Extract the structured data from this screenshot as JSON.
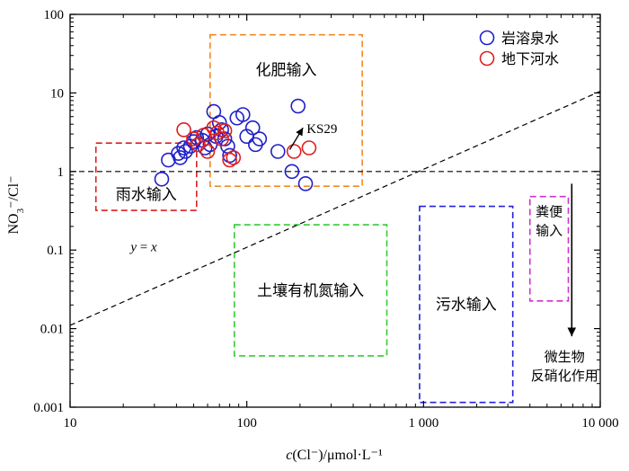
{
  "chart_data": {
    "type": "scatter",
    "xlabel": {
      "prefix": "c",
      "rest": "(Cl⁻)/μmol·L⁻¹"
    },
    "ylabel": {
      "main": "NO",
      "sub": "3",
      "rest": "⁻/Cl⁻"
    },
    "x_scale": "log",
    "y_scale": "log",
    "xlim": [
      10,
      10000
    ],
    "ylim": [
      0.001,
      100
    ],
    "x_ticks": [
      10,
      100,
      1000,
      10000
    ],
    "x_tick_labels": [
      "10",
      "100",
      "1 000",
      "10 000"
    ],
    "y_ticks": [
      0.001,
      0.01,
      0.1,
      1,
      10,
      100
    ],
    "y_tick_labels": [
      "0.001",
      "0.01",
      "0.1",
      "1",
      "10",
      "100"
    ],
    "grid": false,
    "legend_position": "top-right",
    "series": [
      {
        "name": "岩溶泉水",
        "color": "#1f1fcc",
        "marker": "open-circle",
        "points": [
          [
            33,
            0.8
          ],
          [
            36,
            1.4
          ],
          [
            41,
            1.7
          ],
          [
            42,
            1.5
          ],
          [
            44,
            2.0
          ],
          [
            45,
            1.8
          ],
          [
            48,
            2.1
          ],
          [
            50,
            2.4
          ],
          [
            52,
            2.7
          ],
          [
            56,
            2.5
          ],
          [
            58,
            2.0
          ],
          [
            60,
            3.0
          ],
          [
            62,
            2.2
          ],
          [
            65,
            5.8
          ],
          [
            67,
            2.8
          ],
          [
            70,
            4.2
          ],
          [
            72,
            3.4
          ],
          [
            75,
            2.6
          ],
          [
            78,
            2.1
          ],
          [
            80,
            1.6
          ],
          [
            88,
            4.8
          ],
          [
            95,
            5.3
          ],
          [
            100,
            2.8
          ],
          [
            108,
            3.6
          ],
          [
            112,
            2.2
          ],
          [
            118,
            2.6
          ],
          [
            150,
            1.8
          ],
          [
            180,
            1.0
          ],
          [
            195,
            6.8
          ],
          [
            215,
            0.7
          ]
        ]
      },
      {
        "name": "地下河水",
        "color": "#dd1f1f",
        "marker": "open-circle",
        "points": [
          [
            44,
            3.4
          ],
          [
            50,
            2.6
          ],
          [
            53,
            2.2
          ],
          [
            57,
            2.9
          ],
          [
            60,
            1.8
          ],
          [
            65,
            3.6
          ],
          [
            68,
            3.1
          ],
          [
            72,
            2.6
          ],
          [
            75,
            3.3
          ],
          [
            80,
            1.4
          ],
          [
            84,
            1.5
          ],
          [
            185,
            1.8
          ],
          [
            225,
            2.0
          ]
        ]
      }
    ],
    "reference_lines": [
      {
        "label": "y = x",
        "type": "y_equals_x"
      },
      {
        "type": "horizontal",
        "y": 1
      }
    ],
    "zones": [
      {
        "label": "化肥输入",
        "color": "#f08a24",
        "x_range": [
          62,
          450
        ],
        "y_range": [
          0.65,
          55
        ]
      },
      {
        "label": "雨水输入",
        "color": "#d92121",
        "x_range": [
          14,
          52
        ],
        "y_range": [
          0.32,
          2.3
        ]
      },
      {
        "label": "土壤有机氮输入",
        "color": "#33cc33",
        "x_range": [
          85,
          620
        ],
        "y_range": [
          0.0045,
          0.21
        ]
      },
      {
        "label": "污水输入",
        "color": "#2222dd",
        "x_range": [
          950,
          3200
        ],
        "y_range": [
          0.00115,
          0.36
        ]
      },
      {
        "label_lines": [
          "粪便",
          "输入"
        ],
        "color": "#cc33cc",
        "x_range": [
          4000,
          6600
        ],
        "y_range": [
          0.0225,
          0.48
        ]
      }
    ],
    "annotations": [
      {
        "text": "KS29",
        "arrow_from": [
          175,
          1.9
        ],
        "arrow_to": [
          208,
          3.6
        ]
      },
      {
        "text_lines": [
          "微生物",
          "反硝化作用"
        ],
        "arrow_x": 6900,
        "arrow_y_from": 0.7,
        "arrow_y_to": 0.008
      }
    ]
  }
}
